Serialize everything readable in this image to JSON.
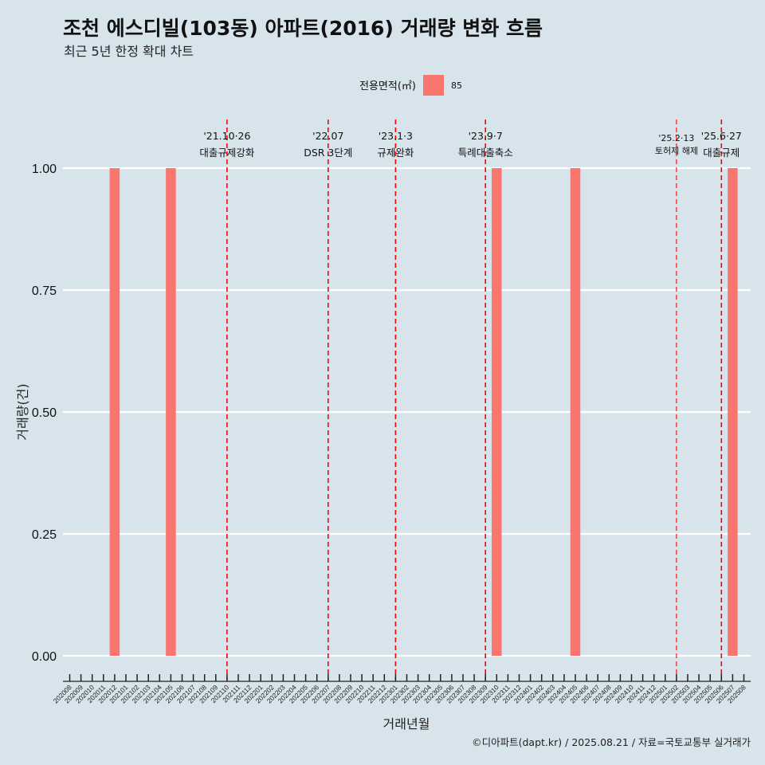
{
  "title": "조천 에스디빌(103동) 아파트(2016) 거래량 변화 흐름",
  "subtitle": "최근 5년 한정 확대 차트",
  "caption": "©디아파트(dapt.kr) / 2025.08.21 / 자료=국토교통부 실거래가",
  "legend": {
    "title": "전용면적(㎡)",
    "items": [
      {
        "label": "85",
        "color": "#f8766d"
      }
    ]
  },
  "colors": {
    "background": "#d7e4eb",
    "bar": "#f8766d",
    "event_line": "#ff0000",
    "grid": "#ffffff"
  },
  "chart_data": {
    "type": "bar",
    "xlabel": "거래년월",
    "ylabel": "거래량(건)",
    "ylim": [
      0,
      1
    ],
    "yticks": [
      "0.00",
      "0.25",
      "0.50",
      "0.75",
      "1.00"
    ],
    "grid": true,
    "legend_position": "top",
    "categories": [
      "202008",
      "202009",
      "202010",
      "202011",
      "202012",
      "202101",
      "202102",
      "202103",
      "202104",
      "202105",
      "202106",
      "202107",
      "202108",
      "202109",
      "202110",
      "202111",
      "202112",
      "202201",
      "202202",
      "202203",
      "202204",
      "202205",
      "202206",
      "202207",
      "202208",
      "202209",
      "202210",
      "202211",
      "202212",
      "202301",
      "202302",
      "202303",
      "202304",
      "202305",
      "202306",
      "202307",
      "202308",
      "202309",
      "202310",
      "202311",
      "202312",
      "202401",
      "202402",
      "202403",
      "202404",
      "202405",
      "202406",
      "202407",
      "202408",
      "202409",
      "202410",
      "202411",
      "202412",
      "202501",
      "202502",
      "202503",
      "202504",
      "202505",
      "202506",
      "202507",
      "202508"
    ],
    "series": [
      {
        "name": "85",
        "points": [
          {
            "x": "202012",
            "y": 1
          },
          {
            "x": "202105",
            "y": 1
          },
          {
            "x": "202310",
            "y": 1
          },
          {
            "x": "202405",
            "y": 1
          },
          {
            "x": "202507",
            "y": 1
          }
        ]
      }
    ],
    "events": [
      {
        "month": "202110",
        "date": "'21.10·26",
        "label": "대출규제강화"
      },
      {
        "month": "202207",
        "date": "'22.07",
        "label": "DSR 3단계"
      },
      {
        "month": "202301",
        "date": "'23.1·3",
        "label": "규제완화"
      },
      {
        "month": "202309",
        "date": "'23.9·7",
        "label": "특례대출축소"
      },
      {
        "month": "202502",
        "date": "'25.2·13",
        "label": "토허제 해제",
        "small": true
      },
      {
        "month": "202506",
        "date": "'25.6·27",
        "label": "대출규제"
      }
    ]
  }
}
